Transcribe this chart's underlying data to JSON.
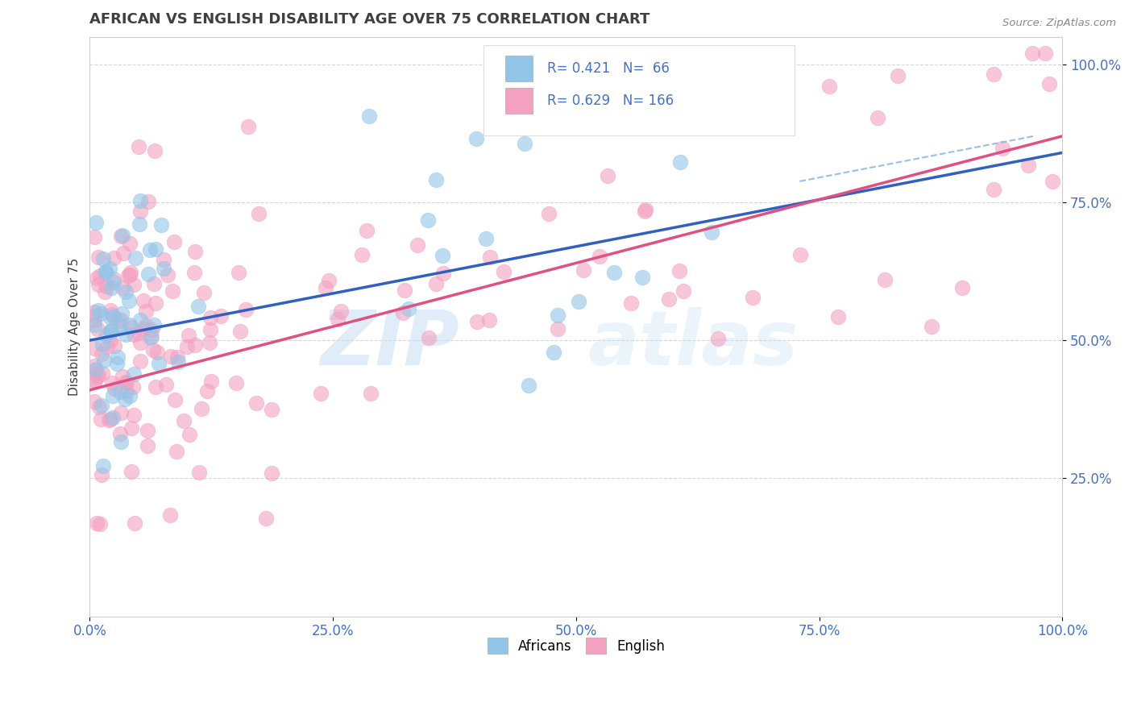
{
  "title": "AFRICAN VS ENGLISH DISABILITY AGE OVER 75 CORRELATION CHART",
  "source": "Source: ZipAtlas.com",
  "ylabel": "Disability Age Over 75",
  "african_color": "#92C5E8",
  "english_color": "#F4A0C0",
  "african_line_color": "#3060C0",
  "english_line_color": "#E05080",
  "dashed_line_color": "#90B8E0",
  "african_R": 0.421,
  "african_N": 66,
  "english_R": 0.629,
  "english_N": 166,
  "africans_label": "Africans",
  "english_label": "English",
  "bg_color": "#FFFFFF",
  "title_color": "#404040",
  "tick_color": "#4472C4",
  "ylabel_color": "#404040"
}
